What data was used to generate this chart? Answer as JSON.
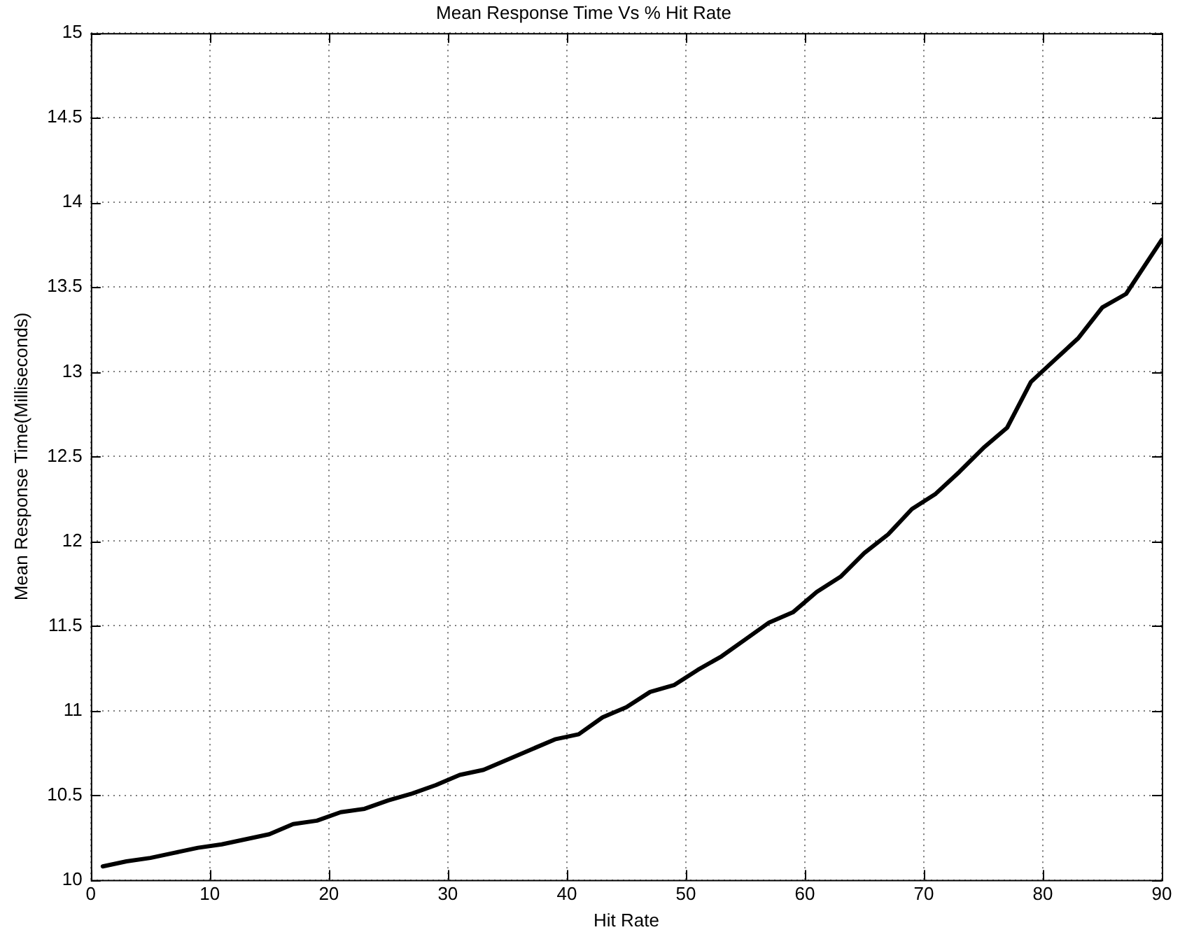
{
  "chart_data": {
    "type": "line",
    "title": "Mean Response Time Vs % Hit Rate",
    "xlabel": "Hit Rate",
    "ylabel": "Mean Response Time(Milliseconds)",
    "x": [
      1,
      3,
      5,
      7,
      9,
      11,
      13,
      15,
      17,
      19,
      21,
      23,
      25,
      27,
      29,
      31,
      33,
      35,
      37,
      39,
      41,
      43,
      45,
      47,
      49,
      51,
      53,
      55,
      57,
      59,
      61,
      63,
      65,
      67,
      69,
      71,
      73,
      75,
      77,
      79,
      81,
      83,
      85,
      87,
      90
    ],
    "series": [
      {
        "color": "#000000",
        "values": [
          10.08,
          10.11,
          10.13,
          10.16,
          10.19,
          10.21,
          10.24,
          10.27,
          10.33,
          10.35,
          10.4,
          10.42,
          10.47,
          10.51,
          10.56,
          10.62,
          10.65,
          10.71,
          10.77,
          10.83,
          10.86,
          10.96,
          11.02,
          11.11,
          11.15,
          11.24,
          11.32,
          11.42,
          11.52,
          11.58,
          11.7,
          11.79,
          11.93,
          12.04,
          12.19,
          12.28,
          12.41,
          12.55,
          12.67,
          12.94,
          13.07,
          13.2,
          13.38,
          13.46,
          13.78
        ]
      }
    ],
    "xlim": [
      0,
      90
    ],
    "xticks": [
      0,
      10,
      20,
      30,
      40,
      50,
      60,
      70,
      80,
      90
    ],
    "ylim": [
      10,
      15
    ],
    "yticks": [
      10,
      10.5,
      11,
      11.5,
      12,
      12.5,
      13,
      13.5,
      14,
      14.5,
      15
    ],
    "grid": true,
    "legend": false,
    "marker": "none",
    "line_style": "solid"
  }
}
